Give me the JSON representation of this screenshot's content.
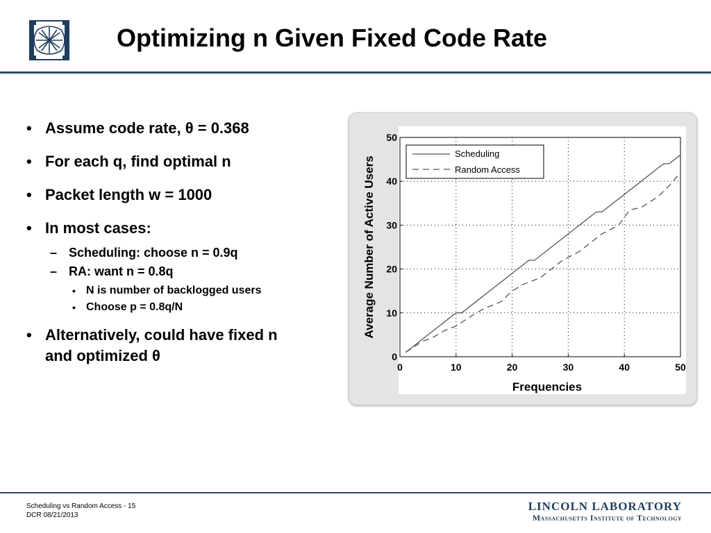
{
  "slide": {
    "title": "Optimizing n Given Fixed Code Rate",
    "bullets": {
      "b1": "Assume code rate, θ = 0.368",
      "b2": "For each q, find optimal n",
      "b3": "Packet length w = 1000",
      "b4": "In most cases:",
      "sub1": "Scheduling: choose n = 0.9q",
      "sub2": "RA: want n = 0.8q",
      "subsub1": "N is number of backlogged users",
      "subsub2": "Choose p = 0.8q/N",
      "b5_line1": "Alternatively, could have fixed n",
      "b5_line2": "and optimized θ"
    },
    "bullet_glyph": "•",
    "dash_glyph": "–"
  },
  "footer": {
    "line1": "Scheduling vs Random Access - 15",
    "line2": "DCR  08/21/2013",
    "lab_line1": "LINCOLN LABORATORY",
    "lab_line2": "Massachusetts Institute of Technology"
  },
  "colors": {
    "brand": "#1f3d5c",
    "rule": "#2b4a6b",
    "panel": "#e4e4e4"
  },
  "chart_data": {
    "type": "line",
    "title": "",
    "xlabel": "Frequencies",
    "ylabel": "Average Number of Active Users",
    "xlim": [
      0,
      50
    ],
    "ylim": [
      0,
      50
    ],
    "xticks": [
      0,
      10,
      20,
      30,
      40,
      50
    ],
    "yticks": [
      0,
      10,
      20,
      30,
      40,
      50
    ],
    "grid": true,
    "legend_position": "top-left",
    "series": [
      {
        "name": "Scheduling",
        "style": "solid",
        "x": [
          1,
          10,
          11,
          23,
          24,
          35,
          36,
          47,
          48,
          50
        ],
        "y": [
          1,
          10,
          10,
          22,
          22,
          33,
          33,
          44,
          44,
          46
        ]
      },
      {
        "name": "Random Access",
        "style": "dashed",
        "x": [
          1,
          4,
          6,
          8,
          10,
          13,
          15,
          18,
          20,
          22,
          25,
          27,
          29,
          32,
          34,
          36,
          39,
          41,
          43,
          46,
          48,
          50
        ],
        "y": [
          1,
          3.5,
          4.5,
          6,
          7,
          9.5,
          11,
          12.5,
          15,
          16.5,
          18,
          20,
          22,
          24,
          26,
          28,
          30,
          33.5,
          34,
          36.5,
          39,
          42
        ]
      }
    ]
  }
}
